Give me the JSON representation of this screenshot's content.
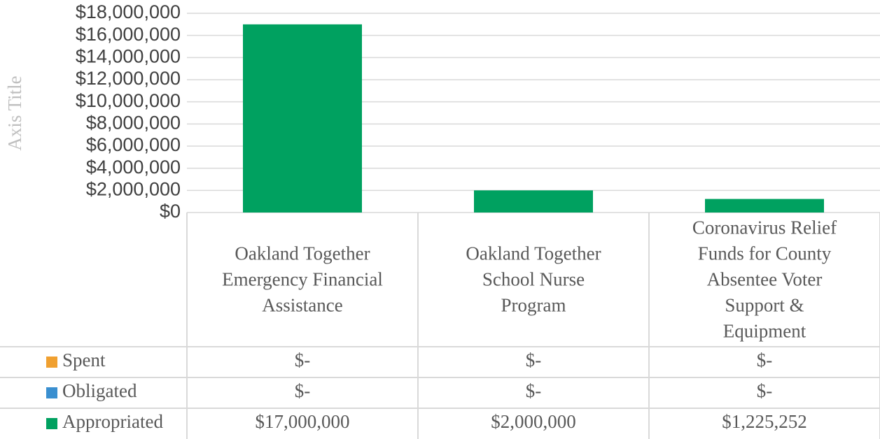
{
  "chart_data": {
    "type": "bar",
    "y_axis_label": "Axis Title",
    "categories": [
      "Oakland Together Emergency Financial Assistance",
      "Oakland Together School Nurse Program",
      "Coronavirus Relief Funds for County Absentee Voter Support & Equipment"
    ],
    "series": [
      {
        "name": "Spent",
        "color": "#f0a030",
        "values": [
          0,
          0,
          0
        ],
        "value_labels": [
          "$-",
          "$-",
          "$-"
        ]
      },
      {
        "name": "Obligated",
        "color": "#3a8fd0",
        "values": [
          0,
          0,
          0
        ],
        "value_labels": [
          "$-",
          "$-",
          "$-"
        ]
      },
      {
        "name": "Appropriated",
        "color": "#00a160",
        "values": [
          17000000,
          2000000,
          1225252
        ],
        "value_labels": [
          "$17,000,000",
          "$2,000,000",
          "$1,225,252"
        ]
      }
    ],
    "ylim": [
      0,
      18000000
    ],
    "yticks": [
      {
        "value": 0,
        "label": "$0"
      },
      {
        "value": 2000000,
        "label": "$2,000,000"
      },
      {
        "value": 4000000,
        "label": "$4,000,000"
      },
      {
        "value": 6000000,
        "label": "$6,000,000"
      },
      {
        "value": 8000000,
        "label": "$8,000,000"
      },
      {
        "value": 10000000,
        "label": "$10,000,000"
      },
      {
        "value": 12000000,
        "label": "$12,000,000"
      },
      {
        "value": 14000000,
        "label": "$14,000,000"
      },
      {
        "value": 16000000,
        "label": "$16,000,000"
      },
      {
        "value": 18000000,
        "label": "$18,000,000"
      }
    ],
    "grid": true
  }
}
